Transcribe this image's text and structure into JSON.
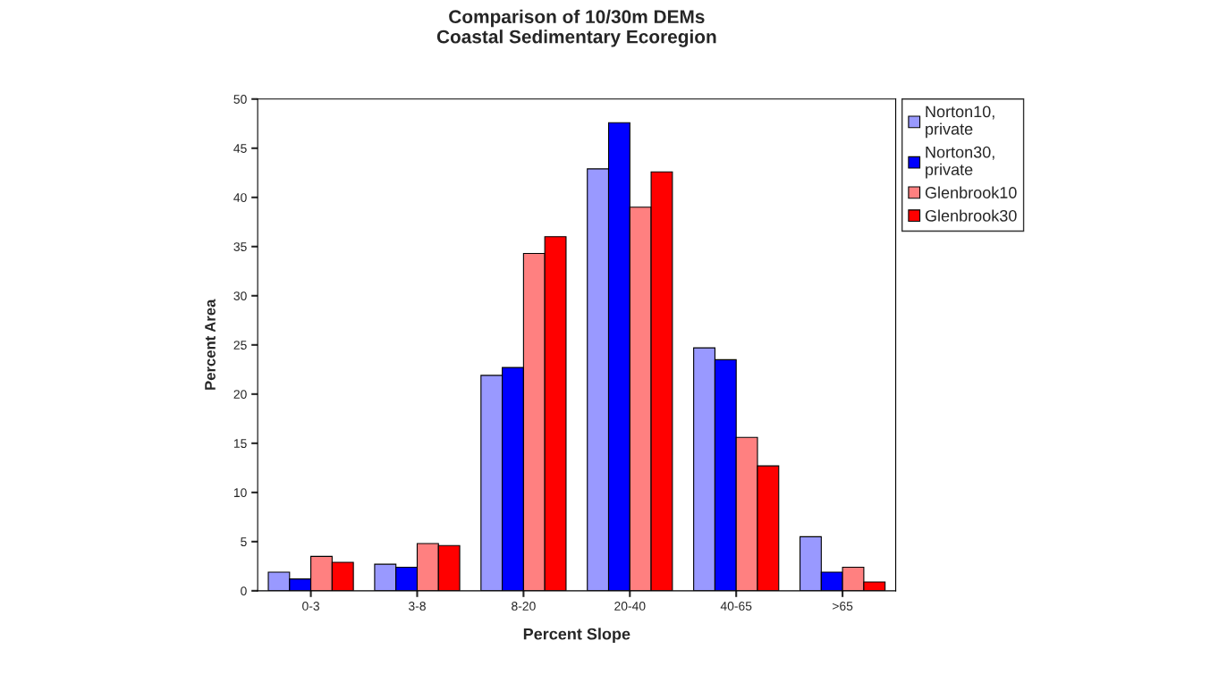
{
  "chart_data": {
    "type": "bar",
    "title": "Comparison of 10/30m DEMs\nCoastal Sedimentary Ecoregion",
    "xlabel": "Percent Slope",
    "ylabel": "Percent Area",
    "categories": [
      "0-3",
      "3-8",
      "8-20",
      "20-40",
      "40-65",
      ">65"
    ],
    "series": [
      {
        "name": "Norton10,\nprivate",
        "color": "#9999ff",
        "values": [
          1.9,
          2.7,
          21.9,
          42.9,
          24.7,
          5.5
        ]
      },
      {
        "name": "Norton30,\nprivate",
        "color": "#0000ff",
        "values": [
          1.2,
          2.4,
          22.7,
          47.6,
          23.5,
          1.9
        ]
      },
      {
        "name": "Glenbrook10",
        "color": "#ff8080",
        "values": [
          3.5,
          4.8,
          34.3,
          39.0,
          15.6,
          2.4
        ]
      },
      {
        "name": "Glenbrook30",
        "color": "#ff0000",
        "values": [
          2.9,
          4.6,
          36.0,
          42.6,
          12.7,
          0.9
        ]
      }
    ],
    "ylim": [
      0,
      50
    ],
    "yticks": [
      0,
      5,
      10,
      15,
      20,
      25,
      30,
      35,
      40,
      45,
      50
    ],
    "grid": false,
    "legend": "right"
  }
}
